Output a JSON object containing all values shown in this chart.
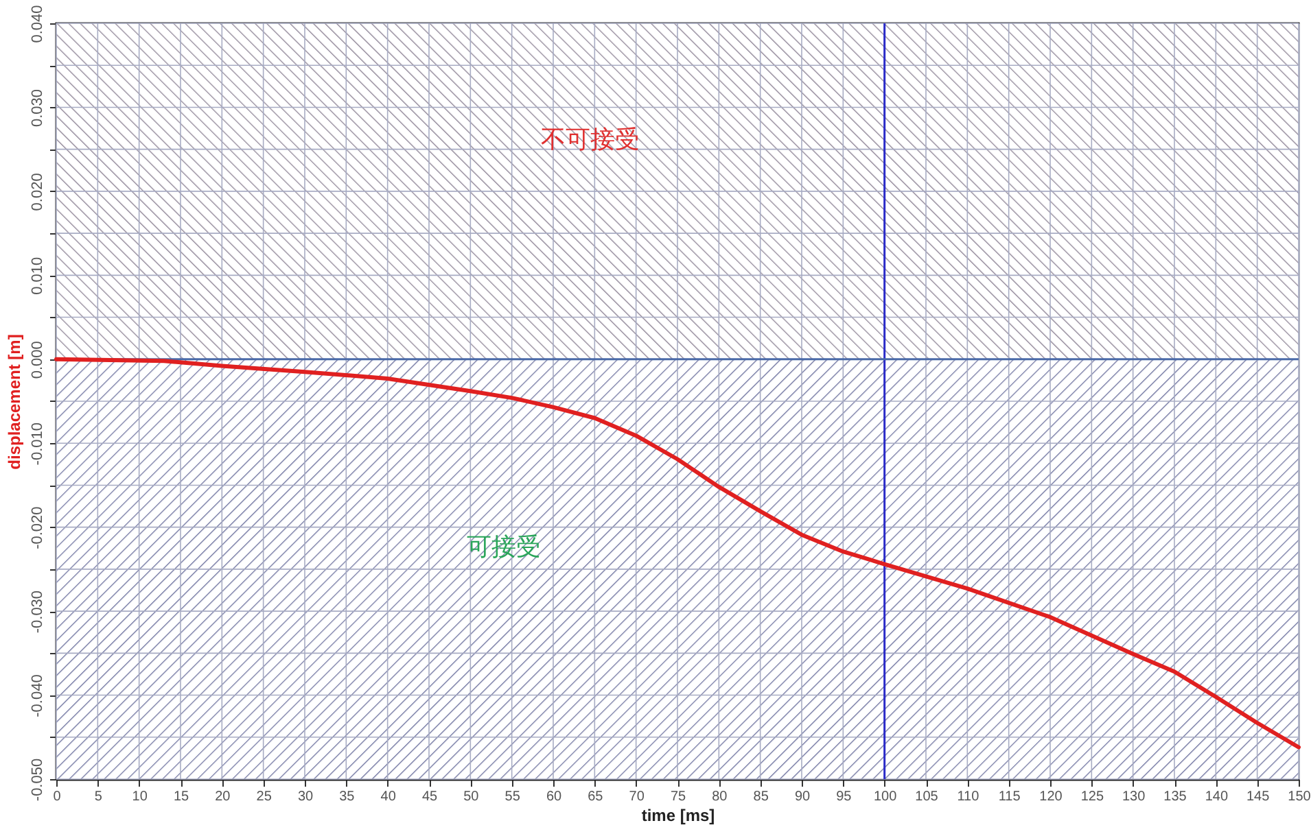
{
  "chart_data": {
    "type": "line",
    "xlabel": "time [ms]",
    "ylabel": "displacement [m]",
    "x": [
      0,
      13,
      20,
      30,
      40,
      50,
      55,
      60,
      65,
      70,
      75,
      80,
      85,
      90,
      95,
      100,
      110,
      120,
      130,
      135,
      140,
      145,
      150
    ],
    "series": [
      {
        "color": "#e02020",
        "values": [
          0,
          -0.0002,
          -0.0008,
          -0.0015,
          -0.0023,
          -0.0038,
          -0.0046,
          -0.0057,
          -0.007,
          -0.0091,
          -0.0119,
          -0.0152,
          -0.0181,
          -0.0209,
          -0.0229,
          -0.0244,
          -0.0273,
          -0.0307,
          -0.0351,
          -0.0372,
          -0.0402,
          -0.0433,
          -0.0462
        ]
      }
    ],
    "xlim": [
      0,
      150
    ],
    "xticks": [
      0,
      5,
      10,
      15,
      20,
      25,
      30,
      35,
      40,
      45,
      50,
      55,
      60,
      65,
      70,
      75,
      80,
      85,
      90,
      95,
      100,
      105,
      110,
      115,
      120,
      125,
      130,
      135,
      140,
      145,
      150
    ],
    "ylim": [
      -0.05,
      0.04
    ],
    "yticks": [
      {
        "value": -0.05,
        "label": "-0.050"
      },
      {
        "value": -0.045,
        "label": null
      },
      {
        "value": -0.04,
        "label": "-0.040"
      },
      {
        "value": -0.035,
        "label": null
      },
      {
        "value": -0.03,
        "label": "-0.030"
      },
      {
        "value": -0.025,
        "label": null
      },
      {
        "value": -0.02,
        "label": "-0.020"
      },
      {
        "value": -0.015,
        "label": null
      },
      {
        "value": -0.01,
        "label": "-0.010"
      },
      {
        "value": -0.005,
        "label": null
      },
      {
        "value": 0,
        "label": "0.000"
      },
      {
        "value": 0.005,
        "label": null
      },
      {
        "value": 0.01,
        "label": "0.010"
      },
      {
        "value": 0.015,
        "label": null
      },
      {
        "value": 0.02,
        "label": "0.020"
      },
      {
        "value": 0.025,
        "label": null
      },
      {
        "value": 0.03,
        "label": "0.030"
      },
      {
        "value": 0.035,
        "label": null
      },
      {
        "value": 0.04,
        "label": "0.040"
      }
    ],
    "bands": [
      {
        "axis": "y",
        "from": 0,
        "to": 0.04,
        "label": "不可接受",
        "color": "#8e8496"
      },
      {
        "axis": "y",
        "from": -0.05,
        "to": 0,
        "label": "可接受",
        "color": "#6f74a0"
      }
    ],
    "ref_lines": [
      {
        "axis": "x",
        "value": 100,
        "color": "#2a2ac8"
      },
      {
        "axis": "y",
        "value": 0,
        "color": "#4a6aa8"
      }
    ],
    "grid": true,
    "marker": "none",
    "line_style": "solid"
  }
}
